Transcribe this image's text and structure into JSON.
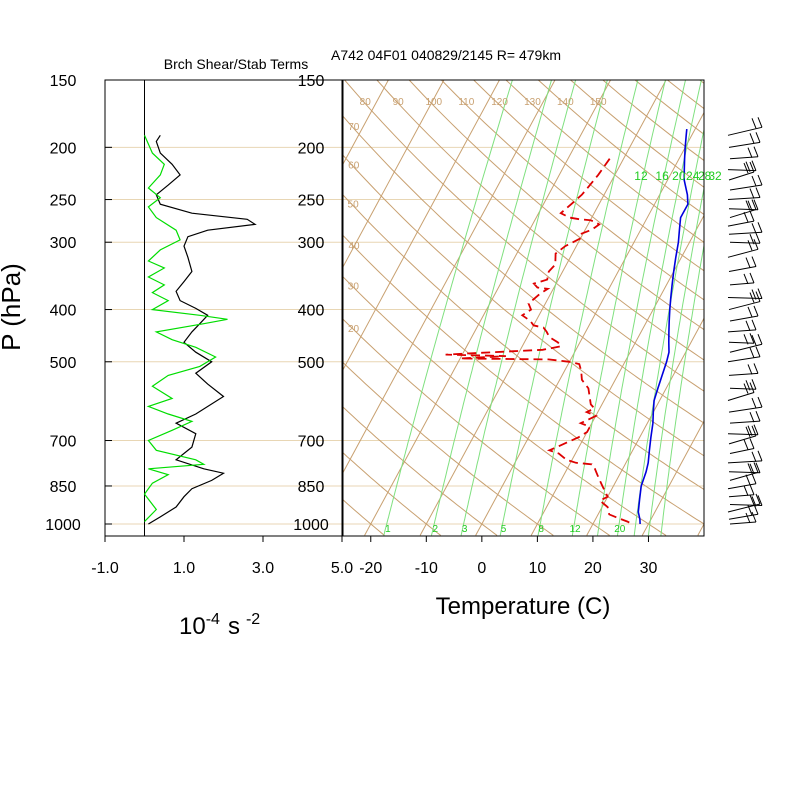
{
  "chart_data": [
    {
      "type": "line",
      "title": "Brch Shear/Stab Terms",
      "ylabel": "P (hPa)",
      "xlabel_base": "10",
      "xlabel_exp": "-4",
      "xlabel_unit": "s",
      "xlabel_unit_exp": "-2",
      "xlim": [
        -1.0,
        5.0
      ],
      "xticks": [
        "-1.0",
        "1.0",
        "3.0",
        "5.0"
      ],
      "ylim": [
        1000,
        150
      ],
      "yticks": [
        "150",
        "200",
        "250",
        "300",
        "400",
        "500",
        "700",
        "850",
        "1000"
      ],
      "y_scale": "log-pressure",
      "grid": true,
      "zero_line": 0.0,
      "series": [
        {
          "color": "#000000",
          "points": [
            [
              0.4,
              190
            ],
            [
              0.3,
              195
            ],
            [
              0.4,
              205
            ],
            [
              0.7,
              215
            ],
            [
              0.9,
              225
            ],
            [
              0.6,
              235
            ],
            [
              0.3,
              245
            ],
            [
              0.4,
              255
            ],
            [
              1.2,
              265
            ],
            [
              2.6,
              272
            ],
            [
              2.8,
              278
            ],
            [
              1.6,
              285
            ],
            [
              1.1,
              293
            ],
            [
              1.0,
              305
            ],
            [
              1.1,
              320
            ],
            [
              1.2,
              340
            ],
            [
              1.0,
              355
            ],
            [
              0.8,
              370
            ],
            [
              0.9,
              385
            ],
            [
              1.3,
              398
            ],
            [
              1.6,
              410
            ],
            [
              1.4,
              425
            ],
            [
              1.2,
              440
            ],
            [
              1.0,
              460
            ],
            [
              1.3,
              480
            ],
            [
              1.7,
              500
            ],
            [
              1.3,
              525
            ],
            [
              1.6,
              550
            ],
            [
              2.0,
              580
            ],
            [
              1.3,
              625
            ],
            [
              0.8,
              650
            ],
            [
              1.3,
              680
            ],
            [
              1.2,
              720
            ],
            [
              0.8,
              760
            ],
            [
              1.5,
              790
            ],
            [
              2.0,
              805
            ],
            [
              1.7,
              830
            ],
            [
              1.2,
              860
            ],
            [
              1.0,
              890
            ],
            [
              0.8,
              930
            ],
            [
              0.4,
              970
            ],
            [
              0.1,
              1000
            ]
          ]
        },
        {
          "color": "#00dd00",
          "points": [
            [
              0.0,
              190
            ],
            [
              0.2,
              205
            ],
            [
              0.5,
              215
            ],
            [
              0.4,
              225
            ],
            [
              0.1,
              238
            ],
            [
              0.4,
              248
            ],
            [
              0.1,
              258
            ],
            [
              0.3,
              270
            ],
            [
              0.8,
              285
            ],
            [
              0.9,
              297
            ],
            [
              0.4,
              310
            ],
            [
              0.1,
              325
            ],
            [
              0.5,
              335
            ],
            [
              0.1,
              348
            ],
            [
              0.5,
              360
            ],
            [
              0.2,
              372
            ],
            [
              0.6,
              385
            ],
            [
              0.2,
              400
            ],
            [
              1.4,
              410
            ],
            [
              2.1,
              417
            ],
            [
              1.5,
              425
            ],
            [
              0.3,
              440
            ],
            [
              0.7,
              455
            ],
            [
              1.3,
              470
            ],
            [
              1.8,
              490
            ],
            [
              1.4,
              510
            ],
            [
              0.6,
              530
            ],
            [
              0.2,
              555
            ],
            [
              0.7,
              585
            ],
            [
              0.1,
              605
            ],
            [
              0.6,
              625
            ],
            [
              1.2,
              645
            ],
            [
              0.7,
              670
            ],
            [
              0.1,
              700
            ],
            [
              0.3,
              730
            ],
            [
              1.3,
              760
            ],
            [
              1.5,
              775
            ],
            [
              0.1,
              790
            ],
            [
              0.6,
              810
            ],
            [
              0.2,
              840
            ],
            [
              0.0,
              880
            ],
            [
              0.3,
              940
            ],
            [
              0.0,
              990
            ]
          ]
        }
      ]
    },
    {
      "type": "line",
      "title": "A742 04F01 040829/2145 R= 479km",
      "xlabel": "Temperature (C)",
      "xlim": [
        -25,
        40
      ],
      "xticks": [
        "-20",
        "-10",
        "0",
        "10",
        "20",
        "30"
      ],
      "ylim": [
        1000,
        150
      ],
      "yticks": [
        "150",
        "200",
        "250",
        "300",
        "400",
        "500",
        "700",
        "850",
        "1000"
      ],
      "y_scale": "log-pressure",
      "skew": true,
      "isotherm_step": 10,
      "dry_adiabat_labels": [
        "20",
        "30",
        "40",
        "50",
        "60",
        "70",
        "80",
        "90",
        "100",
        "110",
        "120",
        "130",
        "140",
        "150"
      ],
      "mixing_ratio_labels_upper": [
        "12",
        "16",
        "20",
        "24",
        "28",
        "32"
      ],
      "mixing_ratio_labels_lower": [
        "1",
        "2",
        "3",
        "5",
        "8",
        "12",
        "20"
      ],
      "series": [
        {
          "name_shown": false,
          "color": "#0000dd",
          "style": "solid",
          "points": [
            [
              -1.5,
              185
            ],
            [
              -1,
              190
            ],
            [
              0,
              200
            ],
            [
              1,
              210
            ],
            [
              2,
              220
            ],
            [
              3,
              230
            ],
            [
              5,
              245
            ],
            [
              6,
              255
            ],
            [
              6,
              270
            ],
            [
              7,
              285
            ],
            [
              8,
              300
            ],
            [
              9,
              320
            ],
            [
              10,
              340
            ],
            [
              11,
              360
            ],
            [
              12,
              380
            ],
            [
              13,
              400
            ],
            [
              14,
              420
            ],
            [
              15,
              440
            ],
            [
              16,
              460
            ],
            [
              17,
              480
            ],
            [
              17.5,
              500
            ],
            [
              18,
              530
            ],
            [
              18.5,
              560
            ],
            [
              19,
              590
            ],
            [
              20,
              620
            ],
            [
              21,
              650
            ],
            [
              22,
              690
            ],
            [
              23,
              730
            ],
            [
              24,
              770
            ],
            [
              24.5,
              800
            ],
            [
              25,
              850
            ],
            [
              26,
              900
            ],
            [
              27,
              950
            ],
            [
              28,
              980
            ],
            [
              28.5,
              1000
            ]
          ]
        },
        {
          "name_shown": false,
          "color": "#dd0000",
          "style": "dashed",
          "points": [
            [
              -12.5,
              210
            ],
            [
              -13,
              225
            ],
            [
              -13.5,
              235
            ],
            [
              -14,
              245
            ],
            [
              -15,
              255
            ],
            [
              -16,
              265
            ],
            [
              -14,
              270
            ],
            [
              -12,
              272
            ],
            [
              -10,
              273
            ],
            [
              -9,
              275
            ],
            [
              -8,
              278
            ],
            [
              -8.5,
              282
            ],
            [
              -9,
              285
            ],
            [
              -10.5,
              290
            ],
            [
              -10,
              295
            ],
            [
              -12,
              305
            ],
            [
              -13,
              315
            ],
            [
              -12,
              330
            ],
            [
              -12.5,
              340
            ],
            [
              -12,
              352
            ],
            [
              -14,
              358
            ],
            [
              -13,
              364
            ],
            [
              -11,
              366
            ],
            [
              -12,
              375
            ],
            [
              -13,
              390
            ],
            [
              -12,
              400
            ],
            [
              -13,
              410
            ],
            [
              -11,
              420
            ],
            [
              -10,
              428
            ],
            [
              -8,
              432
            ],
            [
              -7,
              440
            ],
            [
              -6,
              450
            ],
            [
              -4,
              460
            ],
            [
              -3,
              468
            ],
            [
              -6,
              475
            ],
            [
              -11,
              478
            ],
            [
              -23,
              485
            ],
            [
              -12,
              488
            ],
            [
              -20,
              493
            ],
            [
              -4,
              495
            ],
            [
              0,
              500
            ],
            [
              2,
              505
            ],
            [
              3,
              520
            ],
            [
              4,
              540
            ],
            [
              6,
              560
            ],
            [
              7,
              580
            ],
            [
              8,
              600
            ],
            [
              9,
              610
            ],
            [
              8,
              620
            ],
            [
              10,
              630
            ],
            [
              9,
              640
            ],
            [
              8,
              650
            ],
            [
              10,
              660
            ],
            [
              10,
              675
            ],
            [
              9,
              690
            ],
            [
              8,
              700
            ],
            [
              7,
              710
            ],
            [
              6,
              720
            ],
            [
              5,
              730
            ],
            [
              7,
              740
            ],
            [
              9,
              760
            ],
            [
              11,
              770
            ],
            [
              14,
              775
            ],
            [
              15,
              790
            ],
            [
              16,
              810
            ],
            [
              17,
              830
            ],
            [
              18,
              850
            ],
            [
              19,
              870
            ],
            [
              20,
              890
            ],
            [
              19,
              905
            ],
            [
              21,
              930
            ],
            [
              22,
              960
            ],
            [
              24,
              975
            ],
            [
              26,
              990
            ],
            [
              27,
              1000
            ]
          ]
        }
      ]
    },
    {
      "type": "wind-barbs",
      "pressure_levels": [
        190,
        200,
        210,
        220,
        230,
        240,
        250,
        260,
        270,
        280,
        290,
        300,
        320,
        340,
        360,
        380,
        400,
        420,
        440,
        460,
        480,
        500,
        530,
        560,
        590,
        620,
        650,
        680,
        710,
        740,
        770,
        800,
        830,
        860,
        890,
        920,
        950,
        980,
        1000
      ]
    }
  ]
}
